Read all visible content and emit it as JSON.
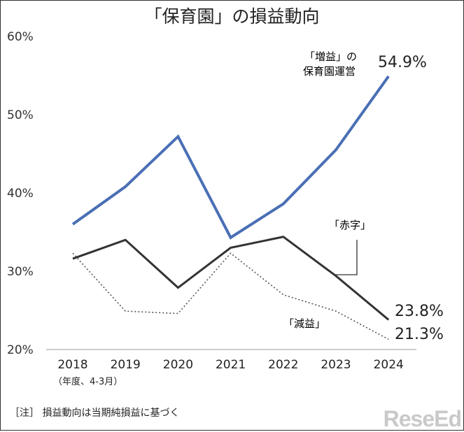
{
  "title": "「保育園」の損益動向",
  "unit_note": "（年度、4-3月）",
  "footnote": "［注］ 損益動向は当期純損益に基づく",
  "logo": "ReseEd",
  "chart_data": {
    "type": "line",
    "title": "「保育園」の損益動向",
    "categories": [
      "2018",
      "2019",
      "2020",
      "2021",
      "2022",
      "2023",
      "2024"
    ],
    "ylim": [
      20,
      60
    ],
    "yticks": [
      "20%",
      "30%",
      "40%",
      "50%",
      "60%"
    ],
    "grid": false,
    "series": [
      {
        "name": "「増益」の保育園運営",
        "color": "#4a6fb5",
        "style": "solid",
        "values": [
          36.0,
          40.8,
          47.2,
          34.3,
          38.6,
          45.5,
          54.9
        ],
        "end_label": "54.9%"
      },
      {
        "name": "「赤字」",
        "color": "#333333",
        "style": "solid",
        "values": [
          31.6,
          34.0,
          27.9,
          33.0,
          34.4,
          29.4,
          23.8
        ],
        "end_label": "23.8%"
      },
      {
        "name": "「減益」",
        "color": "#555555",
        "style": "dotted",
        "values": [
          32.3,
          24.9,
          24.6,
          32.3,
          27.0,
          24.9,
          21.3
        ],
        "end_label": "21.3%"
      }
    ]
  }
}
